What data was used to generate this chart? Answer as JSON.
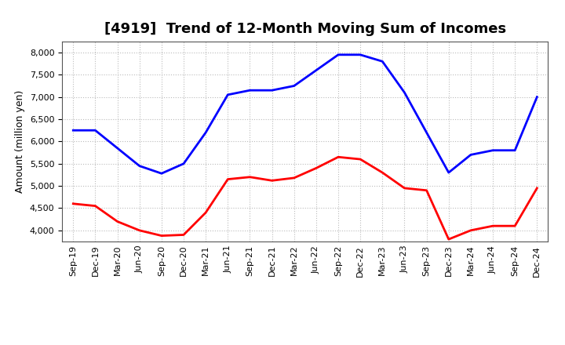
{
  "title": "[4919]  Trend of 12-Month Moving Sum of Incomes",
  "ylabel": "Amount (million yen)",
  "x_labels": [
    "Sep-19",
    "Dec-19",
    "Mar-20",
    "Jun-20",
    "Sep-20",
    "Dec-20",
    "Mar-21",
    "Jun-21",
    "Sep-21",
    "Dec-21",
    "Mar-22",
    "Jun-22",
    "Sep-22",
    "Dec-22",
    "Mar-23",
    "Jun-23",
    "Sep-23",
    "Dec-23",
    "Mar-24",
    "Jun-24",
    "Sep-24",
    "Dec-24"
  ],
  "ordinary_income": [
    6250,
    6250,
    5850,
    5450,
    5280,
    5500,
    6200,
    7050,
    7150,
    7150,
    7250,
    7600,
    7950,
    7950,
    7800,
    7100,
    6200,
    5300,
    5700,
    5800,
    5800,
    7000
  ],
  "net_income": [
    4600,
    4550,
    4200,
    4000,
    3880,
    3900,
    4400,
    5150,
    5200,
    5120,
    5180,
    5400,
    5650,
    5600,
    5300,
    4950,
    4900,
    3800,
    4000,
    4100,
    4100,
    4950
  ],
  "ordinary_color": "#0000FF",
  "net_color": "#FF0000",
  "ylim_min": 3750,
  "ylim_max": 8250,
  "yticks": [
    4000,
    4500,
    5000,
    5500,
    6000,
    6500,
    7000,
    7500,
    8000
  ],
  "background_color": "#FFFFFF",
  "grid_color": "#BBBBBB",
  "title_fontsize": 13,
  "axis_fontsize": 9,
  "tick_fontsize": 8,
  "legend_fontsize": 9.5,
  "linewidth": 2.0
}
